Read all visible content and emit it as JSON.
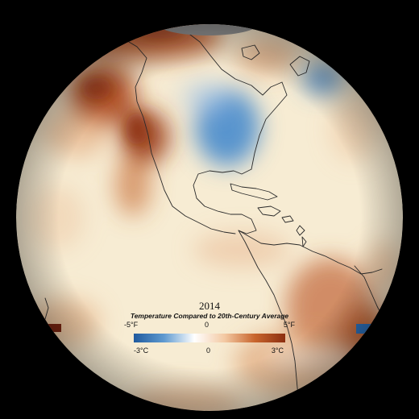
{
  "map": {
    "year": "2014",
    "title": "Temperature Compared to 20th-Century Average",
    "legend": {
      "fahrenheit": {
        "min": "-5°F",
        "mid": "0",
        "max": "5°F"
      },
      "celsius": {
        "min": "-3°C",
        "mid": "0",
        "max": "3°C"
      },
      "gradient_colors": [
        "#1f5a9e",
        "#5f9ad0",
        "#ffffff",
        "#f3c9a3",
        "#c8642c",
        "#8c2e10"
      ]
    },
    "colors": {
      "background": "#000000",
      "neutral": "#f7ecd3",
      "warm": "#b8501e",
      "cool": "#4f8fcd",
      "no_data": "#8c8c8c",
      "coastline": "#2a2a2a"
    }
  }
}
